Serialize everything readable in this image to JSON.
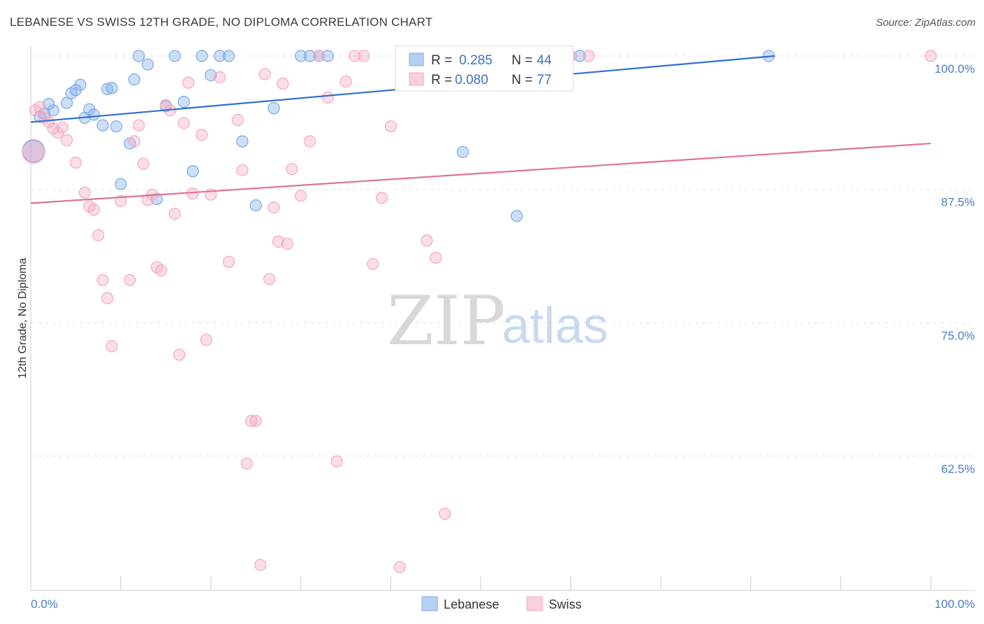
{
  "title": "LEBANESE VS SWISS 12TH GRADE, NO DIPLOMA CORRELATION CHART",
  "source": "Source: ZipAtlas.com",
  "watermark": {
    "zip": "ZIP",
    "atlas": "atlas"
  },
  "chart_data": {
    "type": "scatter",
    "ylabel": "12th Grade, No Diploma",
    "xlim": [
      0,
      100
    ],
    "ylim": [
      52,
      100.5
    ],
    "y_ticks": [
      {
        "v": 100.0,
        "label": "100.0%"
      },
      {
        "v": 87.5,
        "label": "87.5%"
      },
      {
        "v": 75.0,
        "label": "75.0%"
      },
      {
        "v": 62.5,
        "label": "62.5%"
      }
    ],
    "x_tick_labels": {
      "left": "0.0%",
      "right": "100.0%"
    },
    "grid": true,
    "legend": {
      "placement": "top-center",
      "entries": [
        {
          "r_label": "R =",
          "r": "0.285",
          "n_label": "N =",
          "n": "44"
        },
        {
          "r_label": "R =",
          "r": "0.080",
          "n_label": "N =",
          "n": "77"
        }
      ]
    },
    "series": [
      {
        "name": "Lebanese",
        "color": "#7aaae8",
        "line_color": "#2f6fd0",
        "trend": {
          "x0": 0,
          "y0": 93.8,
          "x1": 100,
          "y1": 101.3
        },
        "points": [
          [
            1.0,
            94.3
          ],
          [
            1.5,
            94.6
          ],
          [
            2.0,
            95.5
          ],
          [
            2.5,
            94.9
          ],
          [
            4.0,
            95.6
          ],
          [
            4.5,
            96.5
          ],
          [
            5.0,
            96.8
          ],
          [
            5.5,
            97.3
          ],
          [
            6.0,
            94.2
          ],
          [
            6.5,
            95.0
          ],
          [
            7.0,
            94.5
          ],
          [
            8.0,
            93.5
          ],
          [
            8.5,
            96.9
          ],
          [
            9.0,
            97.0
          ],
          [
            9.5,
            93.4
          ],
          [
            10.0,
            88.0
          ],
          [
            11.0,
            91.8
          ],
          [
            11.5,
            97.8
          ],
          [
            12.0,
            100.0
          ],
          [
            13.0,
            99.2
          ],
          [
            14.0,
            86.6
          ],
          [
            15.0,
            95.3
          ],
          [
            16.0,
            100.0
          ],
          [
            17.0,
            95.7
          ],
          [
            18.0,
            89.2
          ],
          [
            19.0,
            100.0
          ],
          [
            20.0,
            98.2
          ],
          [
            21.0,
            100.0
          ],
          [
            22.0,
            100.0
          ],
          [
            23.5,
            92.0
          ],
          [
            25.0,
            86.0
          ],
          [
            27.0,
            95.1
          ],
          [
            30.0,
            100.0
          ],
          [
            31.0,
            100.0
          ],
          [
            32.0,
            100.0
          ],
          [
            33.0,
            100.0
          ],
          [
            44.0,
            100.0
          ],
          [
            45.0,
            100.0
          ],
          [
            47.0,
            100.0
          ],
          [
            48.0,
            91.0
          ],
          [
            54.0,
            85.0
          ],
          [
            61.0,
            100.0
          ],
          [
            82.0,
            100.0
          ],
          [
            0.3,
            91.1
          ]
        ]
      },
      {
        "name": "Swiss",
        "color": "#f4a8c2",
        "line_color": "#e0709a",
        "trend": {
          "x0": 0,
          "y0": 86.2,
          "x1": 100,
          "y1": 91.8
        },
        "points": [
          [
            0.5,
            94.9
          ],
          [
            1.0,
            95.2
          ],
          [
            1.5,
            94.2
          ],
          [
            2.0,
            93.8
          ],
          [
            2.5,
            93.2
          ],
          [
            3.0,
            92.8
          ],
          [
            3.5,
            93.3
          ],
          [
            4.0,
            92.1
          ],
          [
            5.0,
            90.0
          ],
          [
            6.0,
            87.2
          ],
          [
            6.5,
            85.9
          ],
          [
            7.0,
            85.6
          ],
          [
            7.5,
            83.2
          ],
          [
            8.0,
            79.0
          ],
          [
            8.5,
            77.3
          ],
          [
            9.0,
            72.8
          ],
          [
            10.0,
            86.4
          ],
          [
            11.0,
            79.0
          ],
          [
            11.5,
            92.0
          ],
          [
            12.0,
            93.5
          ],
          [
            12.5,
            89.9
          ],
          [
            13.0,
            86.5
          ],
          [
            13.5,
            87.0
          ],
          [
            14.0,
            80.2
          ],
          [
            14.5,
            79.9
          ],
          [
            15.0,
            95.4
          ],
          [
            15.5,
            94.9
          ],
          [
            16.0,
            85.2
          ],
          [
            16.5,
            72.0
          ],
          [
            17.0,
            93.7
          ],
          [
            17.5,
            97.5
          ],
          [
            18.0,
            87.1
          ],
          [
            19.0,
            92.6
          ],
          [
            19.5,
            73.4
          ],
          [
            20.0,
            87.0
          ],
          [
            21.0,
            98.0
          ],
          [
            22.0,
            80.7
          ],
          [
            23.0,
            94.0
          ],
          [
            23.5,
            89.3
          ],
          [
            24.0,
            61.8
          ],
          [
            24.5,
            65.8
          ],
          [
            25.0,
            65.8
          ],
          [
            25.5,
            52.3
          ],
          [
            26.0,
            98.3
          ],
          [
            26.5,
            79.1
          ],
          [
            27.0,
            85.8
          ],
          [
            27.5,
            82.6
          ],
          [
            28.0,
            97.4
          ],
          [
            28.5,
            82.4
          ],
          [
            29.0,
            89.4
          ],
          [
            30.0,
            86.9
          ],
          [
            31.0,
            92.0
          ],
          [
            32.0,
            100.0
          ],
          [
            33.0,
            96.1
          ],
          [
            34.0,
            62.0
          ],
          [
            35.0,
            97.6
          ],
          [
            36.0,
            100.0
          ],
          [
            37.0,
            100.0
          ],
          [
            38.0,
            80.5
          ],
          [
            39.0,
            86.7
          ],
          [
            40.0,
            93.4
          ],
          [
            41.0,
            52.1
          ],
          [
            42.0,
            100.0
          ],
          [
            43.0,
            100.0
          ],
          [
            44.0,
            82.7
          ],
          [
            45.0,
            81.1
          ],
          [
            46.0,
            57.1
          ],
          [
            47.0,
            100.0
          ],
          [
            48.0,
            100.0
          ],
          [
            50.0,
            100.0
          ],
          [
            52.0,
            100.0
          ],
          [
            55.0,
            100.0
          ],
          [
            58.0,
            100.0
          ],
          [
            60.0,
            100.0
          ],
          [
            62.0,
            100.0
          ],
          [
            100.0,
            100.0
          ],
          [
            0.3,
            91.0
          ]
        ]
      }
    ]
  }
}
